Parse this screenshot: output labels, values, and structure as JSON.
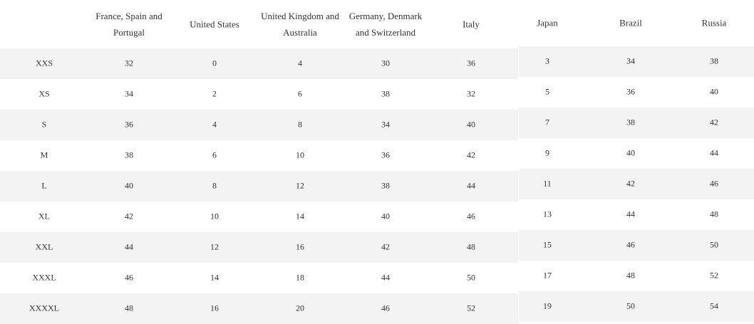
{
  "table": {
    "headers": [
      "France, Spain and Portugal",
      "United States",
      "United Kingdom and Australia",
      "Germany, Denmark and Switzerland",
      "Italy",
      "Japan",
      "Brazil",
      "Russia"
    ],
    "rows": [
      {
        "label": "XXS",
        "values": [
          32,
          0,
          4,
          30,
          36,
          3,
          34,
          38
        ]
      },
      {
        "label": "XS",
        "values": [
          34,
          2,
          6,
          38,
          32,
          5,
          36,
          40
        ]
      },
      {
        "label": "S",
        "values": [
          36,
          4,
          8,
          34,
          40,
          7,
          38,
          42
        ]
      },
      {
        "label": "M",
        "values": [
          38,
          6,
          10,
          36,
          42,
          9,
          40,
          44
        ]
      },
      {
        "label": "L",
        "values": [
          40,
          8,
          12,
          38,
          44,
          11,
          42,
          46
        ]
      },
      {
        "label": "XL",
        "values": [
          42,
          10,
          14,
          40,
          46,
          13,
          44,
          48
        ]
      },
      {
        "label": "XXL",
        "values": [
          44,
          12,
          16,
          42,
          48,
          15,
          46,
          50
        ]
      },
      {
        "label": "XXXL",
        "values": [
          46,
          14,
          18,
          44,
          50,
          17,
          48,
          52
        ]
      },
      {
        "label": "XXXXL",
        "values": [
          48,
          16,
          20,
          46,
          52,
          19,
          50,
          54
        ]
      }
    ]
  }
}
